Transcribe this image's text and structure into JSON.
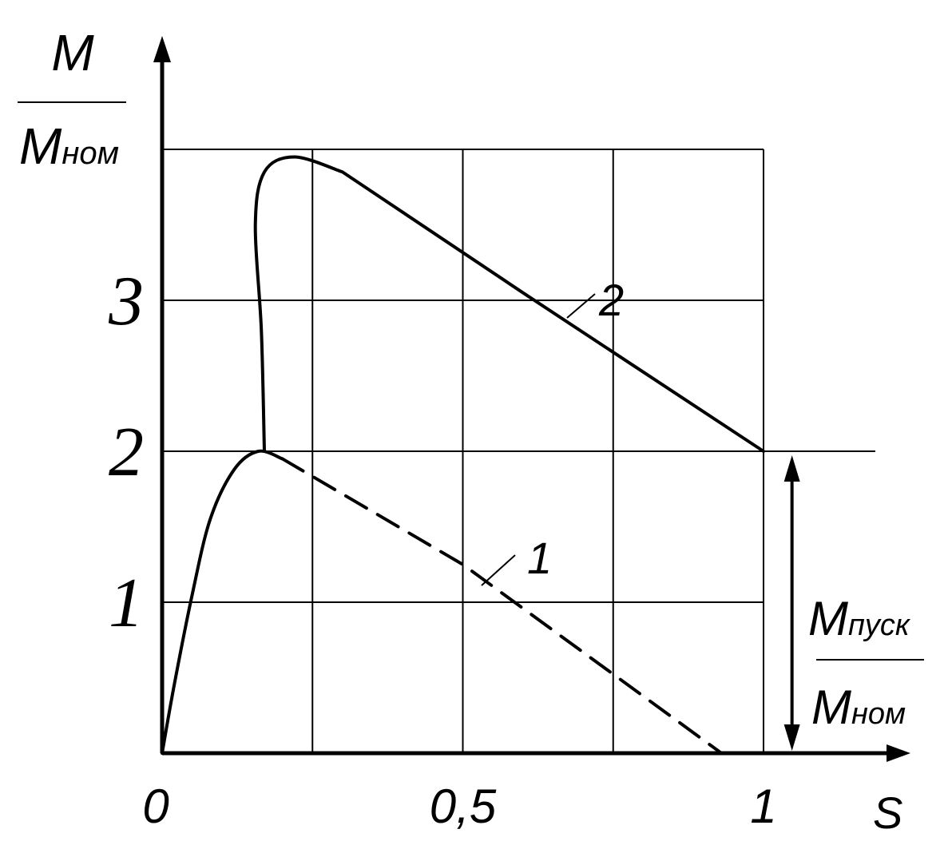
{
  "chart_data": {
    "type": "line",
    "title": "",
    "ylabel": {
      "numerator": "M",
      "denominator_main": "M",
      "denominator_sub": "ном"
    },
    "xlabel": "S",
    "xlim": [
      0,
      1.25
    ],
    "ylim": [
      0,
      4
    ],
    "x_ticks": [
      {
        "value": 0,
        "label": "0"
      },
      {
        "value": 0.5,
        "label": "0,5"
      },
      {
        "value": 1,
        "label": "1"
      }
    ],
    "y_ticks": [
      {
        "value": 1,
        "label": "1"
      },
      {
        "value": 2,
        "label": "2"
      },
      {
        "value": 3,
        "label": "3"
      }
    ],
    "grid": true,
    "series": [
      {
        "name": "1",
        "style": "solid-then-dashed",
        "solid_points": [
          [
            0,
            0
          ],
          [
            0.02,
            0.45
          ],
          [
            0.05,
            1.05
          ],
          [
            0.08,
            1.55
          ],
          [
            0.12,
            1.88
          ],
          [
            0.16,
            2.0
          ],
          [
            0.2,
            1.95
          ]
        ],
        "dashed_points": [
          [
            0.2,
            1.95
          ],
          [
            0.5,
            1.25
          ],
          [
            0.93,
            0.0
          ]
        ]
      },
      {
        "name": "2",
        "style": "solid",
        "points": [
          [
            0.17,
            2.0
          ],
          [
            0.165,
            2.8
          ],
          [
            0.155,
            3.5
          ],
          [
            0.17,
            3.85
          ],
          [
            0.22,
            3.95
          ],
          [
            0.3,
            3.85
          ],
          [
            0.6,
            3.05
          ],
          [
            1.0,
            2.0
          ]
        ]
      }
    ],
    "annotations": [
      {
        "label": {
          "numerator_main": "M",
          "numerator_sub": "пуск",
          "denominator_main": "M",
          "denominator_sub": "ном"
        },
        "arrow_at_x": 1.05,
        "from_y": 0,
        "to_y": 2
      }
    ]
  }
}
